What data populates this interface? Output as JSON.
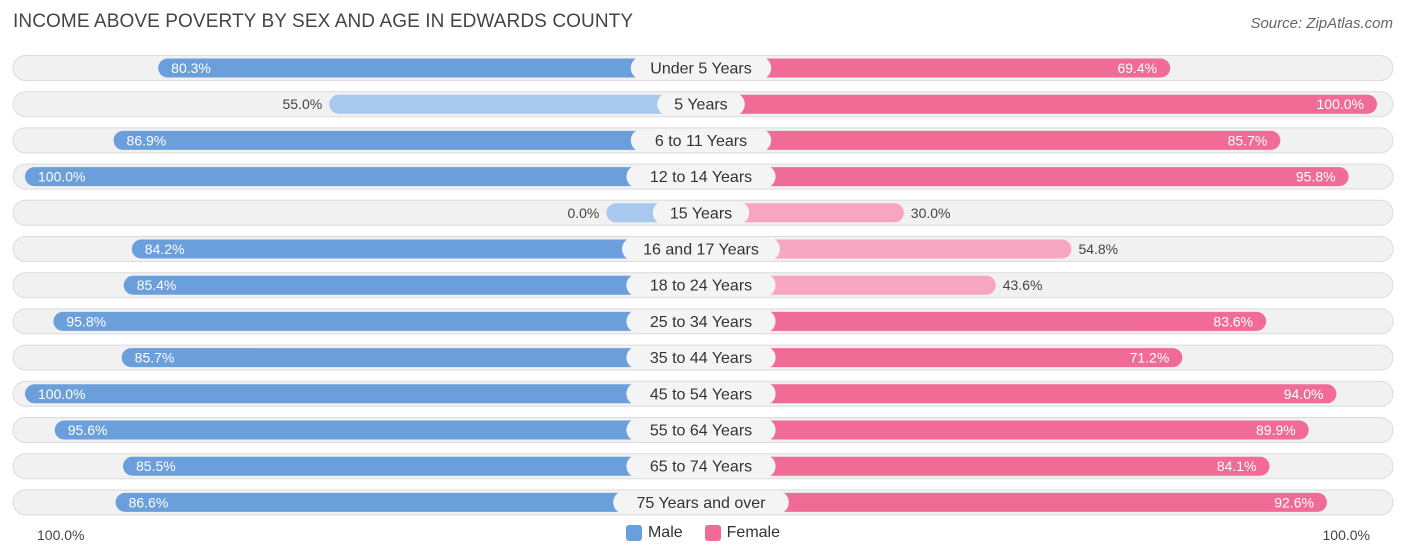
{
  "title": "INCOME ABOVE POVERTY BY SEX AND AGE IN EDWARDS COUNTY",
  "source": "Source: ZipAtlas.com",
  "axis": {
    "left_label": "100.0%",
    "right_label": "100.0%"
  },
  "legend": [
    {
      "label": "Male",
      "color": "#6a9fdc"
    },
    {
      "label": "Female",
      "color": "#f06c96"
    }
  ],
  "colors": {
    "male_strong": "#6a9fdc",
    "male_light": "#a9c8ee",
    "female_strong": "#f06c96",
    "female_light": "#f7a6c1",
    "track": "#f1f1f1",
    "track_border": "#dcdcdc"
  },
  "chart_data": {
    "type": "bar",
    "orientation": "horizontal-diverging",
    "title": "INCOME ABOVE POVERTY BY SEX AND AGE IN EDWARDS COUNTY",
    "xlim": [
      0,
      100
    ],
    "unit": "%",
    "categories": [
      "Under 5 Years",
      "5 Years",
      "6 to 11 Years",
      "12 to 14 Years",
      "15 Years",
      "16 and 17 Years",
      "18 to 24 Years",
      "25 to 34 Years",
      "35 to 44 Years",
      "45 to 54 Years",
      "55 to 64 Years",
      "65 to 74 Years",
      "75 Years and over"
    ],
    "series": [
      {
        "name": "Male",
        "values": [
          80.3,
          55.0,
          86.9,
          100.0,
          0.0,
          84.2,
          85.4,
          95.8,
          85.7,
          100.0,
          95.6,
          85.5,
          86.6
        ],
        "labels": [
          "80.3%",
          "55.0%",
          "86.9%",
          "100.0%",
          "0.0%",
          "84.2%",
          "85.4%",
          "95.8%",
          "85.7%",
          "100.0%",
          "95.6%",
          "85.5%",
          "86.6%"
        ]
      },
      {
        "name": "Female",
        "values": [
          69.4,
          100.0,
          85.7,
          95.8,
          30.0,
          54.8,
          43.6,
          83.6,
          71.2,
          94.0,
          89.9,
          84.1,
          92.6
        ],
        "labels": [
          "69.4%",
          "100.0%",
          "85.7%",
          "95.8%",
          "30.0%",
          "54.8%",
          "43.6%",
          "83.6%",
          "71.2%",
          "94.0%",
          "89.9%",
          "84.1%",
          "92.6%"
        ]
      }
    ]
  }
}
